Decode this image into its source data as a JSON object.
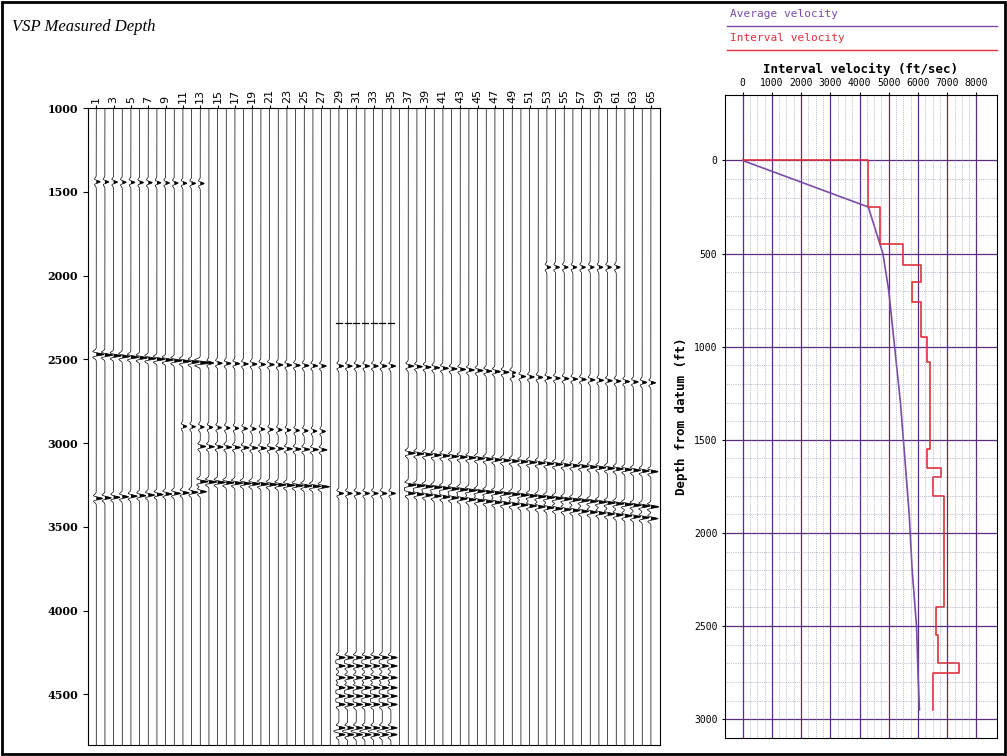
{
  "chart_data": [
    {
      "type": "seismic_wiggle",
      "title": "VSP Measured Depth",
      "xlim": [
        0,
        66
      ],
      "xticks": [
        1,
        3,
        5,
        7,
        9,
        11,
        13,
        15,
        17,
        19,
        21,
        23,
        25,
        27,
        29,
        31,
        33,
        35,
        37,
        39,
        41,
        43,
        45,
        47,
        49,
        51,
        53,
        55,
        57,
        59,
        61,
        63,
        65
      ],
      "ylim": [
        4800,
        1000
      ],
      "yticks": [
        1000,
        1500,
        2000,
        2500,
        3000,
        3500,
        4000,
        4500
      ],
      "blank": {
        "traces": [
          29,
          35
        ],
        "depths": [
          1000,
          2280
        ]
      },
      "events": [
        {
          "traces": [
            1,
            13
          ],
          "depths": [
            1440,
            1450
          ],
          "amplitude": 0.5
        },
        {
          "traces": [
            53,
            61
          ],
          "depths": [
            1950,
            1950
          ],
          "amplitude": 0.5
        },
        {
          "traces": [
            1,
            13
          ],
          "depths": [
            2470,
            2520
          ],
          "amplitude": 1.0
        },
        {
          "traces": [
            13,
            27
          ],
          "depths": [
            2520,
            2540
          ],
          "amplitude": 0.6
        },
        {
          "traces": [
            29,
            35
          ],
          "depths": [
            2540,
            2540
          ],
          "amplitude": 0.6
        },
        {
          "traces": [
            37,
            49
          ],
          "depths": [
            2540,
            2580
          ],
          "amplitude": 0.7
        },
        {
          "traces": [
            49,
            65
          ],
          "depths": [
            2600,
            2640
          ],
          "amplitude": 0.6
        },
        {
          "traces": [
            11,
            27
          ],
          "depths": [
            2900,
            2930
          ],
          "amplitude": 0.5
        },
        {
          "traces": [
            13,
            27
          ],
          "depths": [
            3020,
            3040
          ],
          "amplitude": 0.7
        },
        {
          "traces": [
            37,
            65
          ],
          "depths": [
            3060,
            3170
          ],
          "amplitude": 0.9
        },
        {
          "traces": [
            13,
            27
          ],
          "depths": [
            3230,
            3260
          ],
          "amplitude": 1.0
        },
        {
          "traces": [
            1,
            13
          ],
          "depths": [
            3330,
            3290
          ],
          "amplitude": 0.8
        },
        {
          "traces": [
            37,
            65
          ],
          "depths": [
            3250,
            3380
          ],
          "amplitude": 1.0
        },
        {
          "traces": [
            37,
            65
          ],
          "depths": [
            3300,
            3450
          ],
          "amplitude": 0.9
        },
        {
          "traces": [
            29,
            35
          ],
          "depths": [
            3300,
            3300
          ],
          "amplitude": 0.6
        },
        {
          "traces": [
            29,
            35
          ],
          "depths": [
            4280,
            4280
          ],
          "amplitude": 0.8
        },
        {
          "traces": [
            29,
            35
          ],
          "depths": [
            4330,
            4330
          ],
          "amplitude": 0.8
        },
        {
          "traces": [
            29,
            35
          ],
          "depths": [
            4400,
            4400
          ],
          "amplitude": 0.8
        },
        {
          "traces": [
            29,
            35
          ],
          "depths": [
            4460,
            4460
          ],
          "amplitude": 0.8
        },
        {
          "traces": [
            29,
            35
          ],
          "depths": [
            4510,
            4510
          ],
          "amplitude": 0.8
        },
        {
          "traces": [
            29,
            35
          ],
          "depths": [
            4560,
            4560
          ],
          "amplitude": 0.8
        },
        {
          "traces": [
            29,
            35
          ],
          "depths": [
            4700,
            4700
          ],
          "amplitude": 0.8
        },
        {
          "traces": [
            29,
            35
          ],
          "depths": [
            4740,
            4740
          ],
          "amplitude": 0.8
        }
      ]
    },
    {
      "type": "line",
      "title": "Interval velocity (ft/sec)",
      "y_label": "Depth from datum (ft)",
      "xlim": [
        -600,
        8700
      ],
      "xticks": [
        0,
        1000,
        2000,
        3000,
        4000,
        5000,
        6000,
        7000,
        8000
      ],
      "ylim": [
        3100,
        -350
      ],
      "yticks": [
        0,
        500,
        1000,
        1500,
        2000,
        2500,
        3000
      ],
      "grid": true,
      "legend": "upper left",
      "series": [
        {
          "name": "Average velocity",
          "color": "#7b4aa8",
          "x": [
            0,
            4300,
            4500,
            4800,
            5000,
            5200,
            5400,
            5550,
            5700,
            5800,
            5950,
            6000,
            6050
          ],
          "values": [
            0,
            250,
            350,
            500,
            700,
            1000,
            1300,
            1600,
            1900,
            2200,
            2500,
            2750,
            2950
          ]
        },
        {
          "name": "Interval velocity",
          "color": "#e0303a",
          "x": [
            0,
            4300,
            4300,
            4700,
            4700,
            5500,
            5500,
            6100,
            6100,
            5800,
            5800,
            6100,
            6100,
            6300,
            6300,
            6400,
            6400,
            6300,
            6300,
            6800,
            6800,
            6500,
            6500,
            6900,
            6900,
            6600,
            6600,
            6700,
            6700,
            7400,
            7400,
            6500,
            6500
          ],
          "values": [
            0,
            0,
            250,
            250,
            450,
            450,
            560,
            560,
            650,
            650,
            760,
            760,
            950,
            950,
            1080,
            1080,
            1550,
            1550,
            1650,
            1650,
            1700,
            1700,
            1800,
            1800,
            2400,
            2400,
            2550,
            2550,
            2700,
            2700,
            2750,
            2750,
            2950
          ]
        }
      ]
    }
  ]
}
